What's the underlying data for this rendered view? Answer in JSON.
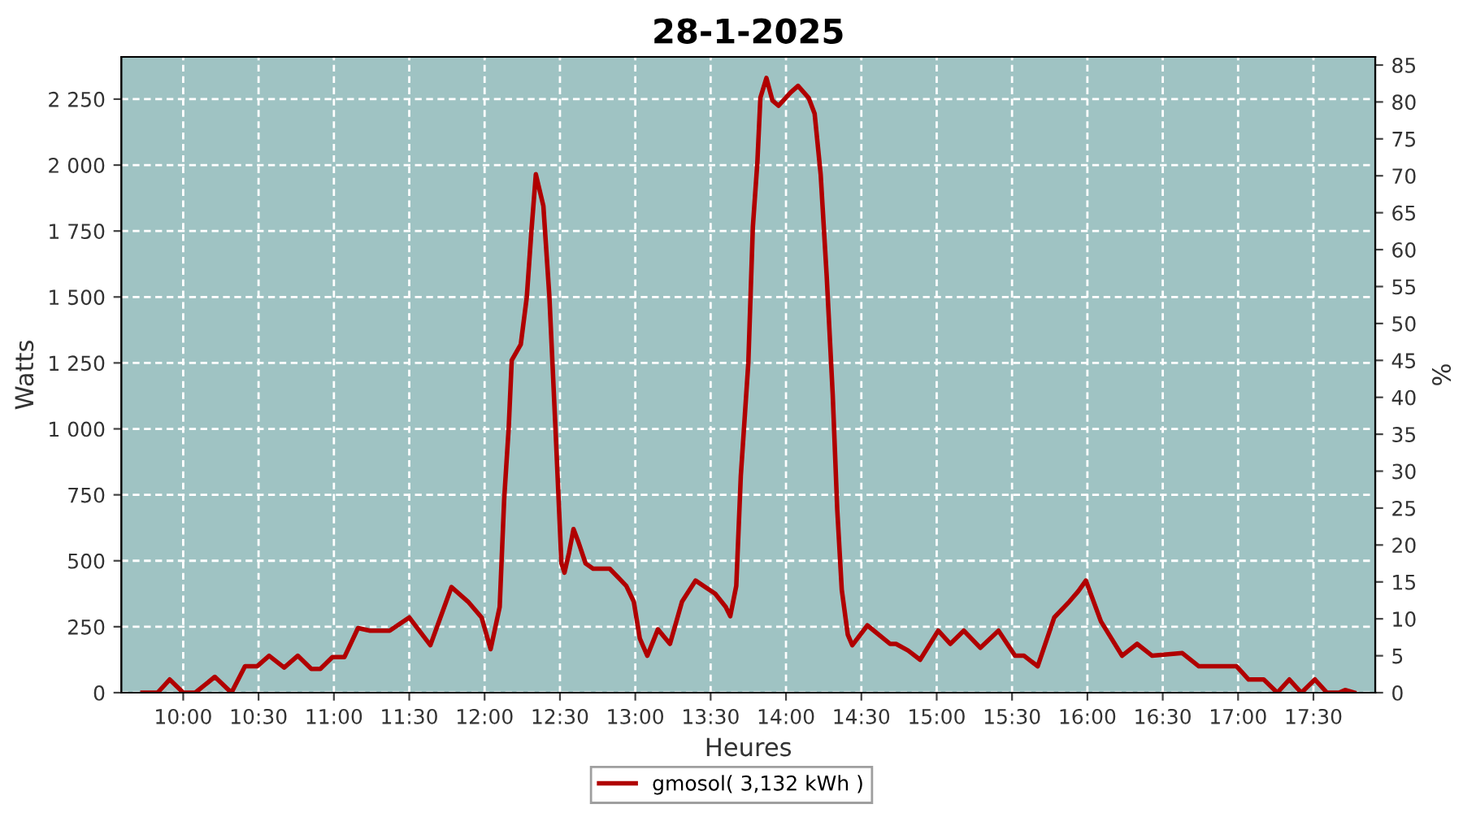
{
  "chart_data": {
    "type": "line",
    "title": "28-1-2025",
    "xlabel": "Heures",
    "ylabel": "Watts",
    "y2label": "%",
    "x": [
      9.73,
      9.83,
      9.91,
      10.0,
      10.08,
      10.21,
      10.32,
      10.41,
      10.49,
      10.57,
      10.67,
      10.76,
      10.85,
      10.91,
      10.99,
      11.07,
      11.16,
      11.24,
      11.37,
      11.5,
      11.64,
      11.78,
      11.89,
      11.98,
      12.04,
      12.1,
      12.13,
      12.16,
      12.18,
      12.24,
      12.28,
      12.31,
      12.34,
      12.39,
      12.43,
      12.47,
      12.51,
      12.53,
      12.56,
      12.59,
      12.62,
      12.67,
      12.72,
      12.83,
      12.94,
      12.99,
      13.03,
      13.08,
      13.15,
      13.23,
      13.31,
      13.4,
      13.53,
      13.6,
      13.63,
      13.67,
      13.7,
      13.75,
      13.78,
      13.81,
      13.83,
      13.87,
      13.91,
      13.95,
      14.03,
      14.08,
      14.15,
      14.19,
      14.23,
      14.27,
      14.31,
      14.34,
      14.37,
      14.41,
      14.44,
      14.54,
      14.69,
      14.73,
      14.81,
      14.89,
      15.01,
      15.09,
      15.18,
      15.29,
      15.41,
      15.52,
      15.58,
      15.67,
      15.78,
      15.88,
      15.94,
      15.99,
      16.09,
      16.23,
      16.33,
      16.43,
      16.63,
      16.74,
      16.99,
      17.07,
      17.17,
      17.26,
      17.34,
      17.42,
      17.51,
      17.59,
      17.67,
      17.71,
      17.77
    ],
    "series": [
      {
        "name": "gmosol( 3,132 kWh )",
        "color": "#b00000",
        "values": [
          0,
          0,
          50,
          0,
          0,
          60,
          0,
          100,
          100,
          140,
          95,
          140,
          90,
          90,
          135,
          135,
          245,
          235,
          235,
          285,
          180,
          400,
          345,
          285,
          165,
          325,
          735,
          1005,
          1260,
          1320,
          1500,
          1745,
          1965,
          1845,
          1500,
          1005,
          490,
          455,
          530,
          620,
          575,
          490,
          470,
          470,
          405,
          345,
          205,
          140,
          240,
          185,
          345,
          425,
          375,
          325,
          290,
          405,
          820,
          1250,
          1765,
          2010,
          2255,
          2330,
          2245,
          2225,
          2275,
          2300,
          2255,
          2195,
          1965,
          1580,
          1130,
          695,
          390,
          220,
          180,
          255,
          185,
          185,
          160,
          125,
          235,
          185,
          235,
          170,
          235,
          140,
          140,
          100,
          285,
          345,
          385,
          425,
          270,
          140,
          185,
          140,
          150,
          100,
          100,
          50,
          50,
          0,
          50,
          0,
          50,
          0,
          0,
          10,
          0
        ]
      }
    ],
    "xlim": [
      9.59,
      17.91
    ],
    "xticks": [
      {
        "value": 10,
        "label": "10:00"
      },
      {
        "value": 10.5,
        "label": "10:30"
      },
      {
        "value": 11,
        "label": "11:00"
      },
      {
        "value": 11.5,
        "label": "11:30"
      },
      {
        "value": 12,
        "label": "12:00"
      },
      {
        "value": 12.5,
        "label": "12:30"
      },
      {
        "value": 13,
        "label": "13:00"
      },
      {
        "value": 13.5,
        "label": "13:30"
      },
      {
        "value": 14,
        "label": "14:00"
      },
      {
        "value": 14.5,
        "label": "14:30"
      },
      {
        "value": 15,
        "label": "15:00"
      },
      {
        "value": 15.5,
        "label": "15:30"
      },
      {
        "value": 16,
        "label": "16:00"
      },
      {
        "value": 16.5,
        "label": "16:30"
      },
      {
        "value": 17,
        "label": "17:00"
      },
      {
        "value": 17.5,
        "label": "17:30"
      }
    ],
    "ylim": [
      0,
      2410
    ],
    "yticks": [
      0,
      250,
      500,
      750,
      {
        "value": 1000,
        "label": "1 000"
      },
      {
        "value": 1250,
        "label": "1 250"
      },
      {
        "value": 1500,
        "label": "1 500"
      },
      {
        "value": 1750,
        "label": "1 750"
      },
      {
        "value": 2000,
        "label": "2 000"
      },
      {
        "value": 2250,
        "label": "2 250"
      }
    ],
    "y2lim": [
      0,
      86.1
    ],
    "y2ticks": [
      0,
      5,
      10,
      15,
      20,
      25,
      30,
      35,
      40,
      45,
      50,
      55,
      60,
      65,
      70,
      75,
      80,
      85
    ],
    "grid": true,
    "legend": "bottom",
    "marker": "none",
    "line_style": "solid"
  }
}
